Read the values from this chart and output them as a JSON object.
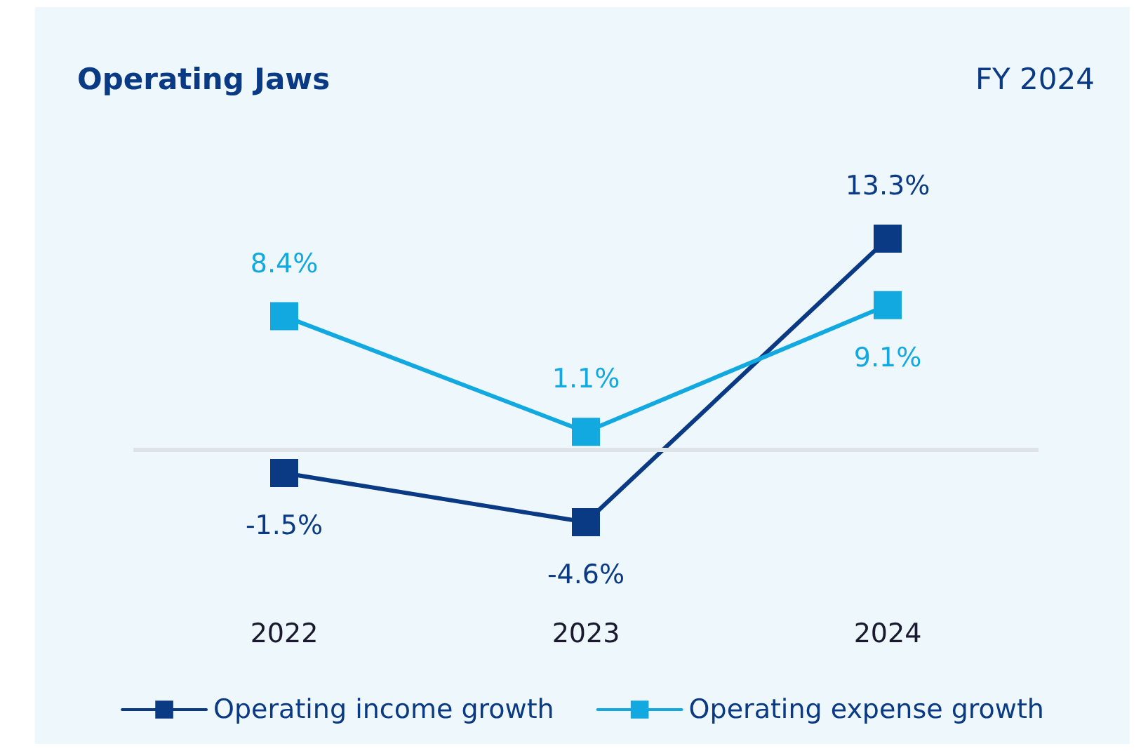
{
  "chart_data": {
    "type": "line",
    "title": "Operating Jaws",
    "subtitle": "FY 2024",
    "categories": [
      "2022",
      "2023",
      "2024"
    ],
    "series": [
      {
        "name": "Operating income growth",
        "color": "#0b3a85",
        "values": [
          -1.5,
          -4.6,
          13.3
        ],
        "value_labels": [
          "-1.5%",
          "-4.6%",
          "13.3%"
        ]
      },
      {
        "name": "Operating expense growth",
        "color": "#12a9e1",
        "values": [
          8.4,
          1.1,
          9.1
        ],
        "value_labels": [
          "8.4%",
          "1.1%",
          "9.1%"
        ]
      }
    ],
    "ref_lines": [
      {
        "axis": "y",
        "value": 0,
        "color": "#dde3e6"
      }
    ],
    "marker": "square",
    "line_style": "solid",
    "legend": "bottom",
    "grid": false
  }
}
